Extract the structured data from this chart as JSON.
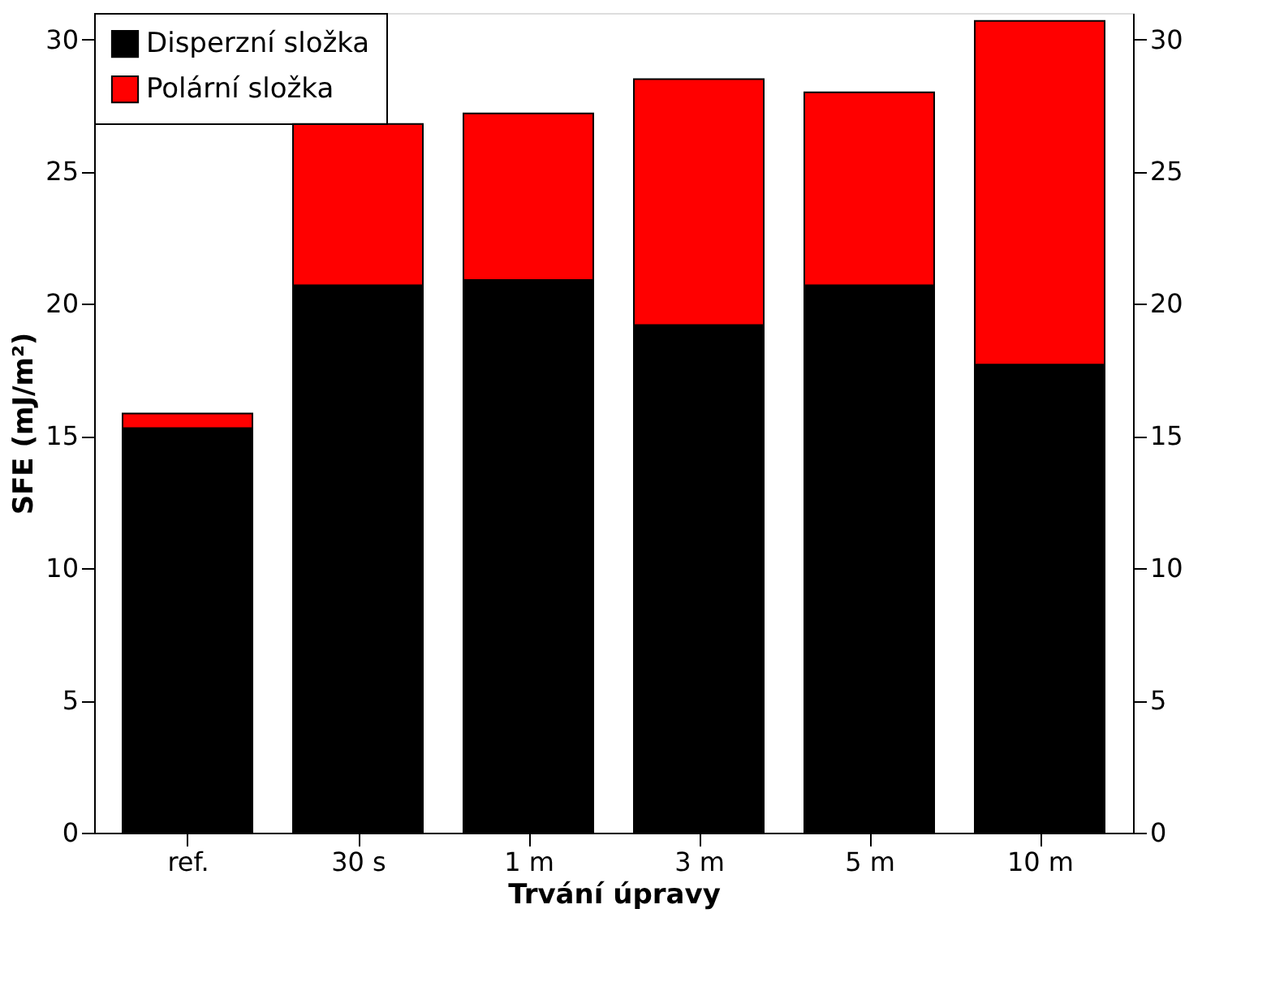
{
  "chart_data": {
    "type": "bar",
    "stacked": true,
    "xlabel": "Trvání úpravy",
    "ylabel": "SFE (mJ/m²)",
    "categories": [
      "ref.",
      "30 s",
      "1 m",
      "3 m",
      "5 m",
      "10 m"
    ],
    "series": [
      {
        "name": "Disperzní složka",
        "color": "#000000",
        "values": [
          15.3,
          20.7,
          20.9,
          19.2,
          20.7,
          17.7
        ]
      },
      {
        "name": "Polární složka",
        "color": "#ff0000",
        "values": [
          0.55,
          6.1,
          6.3,
          9.3,
          7.3,
          13.0
        ]
      }
    ],
    "ylim": [
      0,
      31
    ],
    "yticks": [
      0,
      5,
      10,
      15,
      20,
      25,
      30
    ],
    "y2lim": [
      0,
      31
    ],
    "y2ticks": [
      0,
      5,
      10,
      15,
      20,
      25,
      30
    ],
    "legend": "top left",
    "grid": false
  }
}
